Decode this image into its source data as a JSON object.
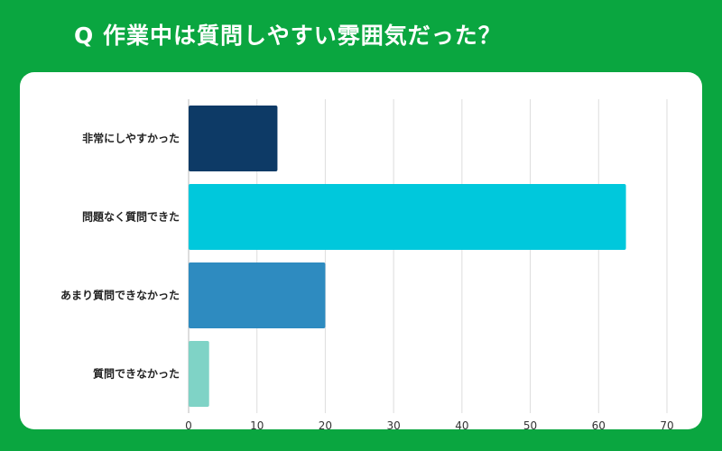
{
  "title": "Q 作業中は質問しやすい雰囲気だった？",
  "chart_data": {
    "type": "bar",
    "orientation": "horizontal",
    "title": "Q 作業中は質問しやすい雰囲気だった？",
    "categories": [
      "非常にしやすかった",
      "問題なく質問できた",
      "あまり質問できなかった",
      "質問できなかった"
    ],
    "values": [
      13,
      64,
      20,
      3
    ],
    "colors": [
      "#0d3a66",
      "#00c8dc",
      "#2e8bc0",
      "#7fd3c6"
    ],
    "xlim": [
      0,
      70
    ],
    "xticks": [
      0,
      10,
      20,
      30,
      40,
      50,
      60,
      70
    ],
    "grid": true,
    "legend": "none"
  }
}
